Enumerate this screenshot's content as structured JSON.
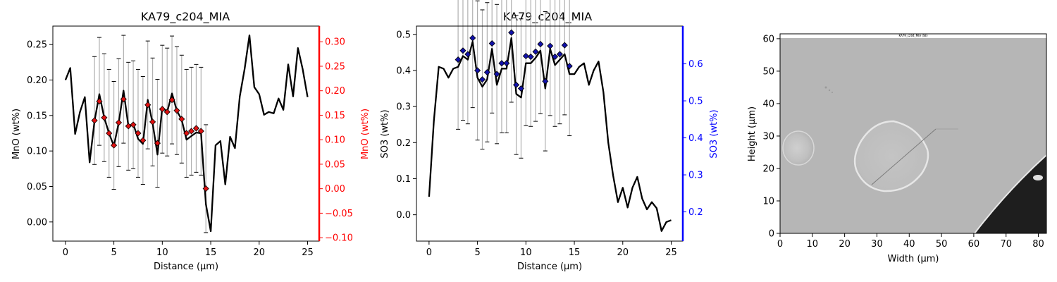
{
  "chart_data": [
    {
      "type": "line",
      "title": "KA79_c204_MIA",
      "xlabel": "Distance (µm)",
      "ylabel": "MnO (wt%)",
      "ylabel_right": "MnO (wt%)",
      "xlim": [
        -1.3,
        26.2
      ],
      "ylim": [
        -0.027,
        0.276
      ],
      "ylim_right": [
        -0.107,
        0.332
      ],
      "xticks": [
        0,
        5,
        10,
        15,
        20,
        25
      ],
      "yticks": [
        0.0,
        0.05,
        0.1,
        0.15,
        0.2,
        0.25
      ],
      "yticks_right": [
        -0.1,
        -0.05,
        0.0,
        0.05,
        0.1,
        0.15,
        0.2,
        0.25,
        0.3
      ],
      "ytick_labels": [
        "0.00",
        "0.05",
        "0.10",
        "0.15",
        "0.20",
        "0.25"
      ],
      "ytick_labels_right": [
        "−0.10",
        "−0.05",
        "0.00",
        "0.05",
        "0.10",
        "0.15",
        "0.20",
        "0.25",
        "0.30"
      ],
      "right_axis_color": "#ff0000",
      "marker_color": "#dd1111",
      "profile": {
        "x": [
          0,
          0.5,
          1,
          1.5,
          2,
          2.5,
          3,
          3.5,
          4,
          4.5,
          5,
          5.5,
          6,
          6.5,
          7,
          7.5,
          8,
          8.5,
          9,
          9.5,
          10,
          10.5,
          11,
          11.5,
          12,
          12.5,
          13,
          13.5,
          14,
          14.5,
          15,
          15.5,
          16,
          16.5,
          17,
          17.5,
          18,
          18.5,
          19,
          19.5,
          20,
          20.5,
          21,
          21.5,
          22,
          22.5,
          23,
          23.5,
          24,
          24.5,
          25
        ],
        "y": [
          0.2,
          0.217,
          0.124,
          0.155,
          0.176,
          0.084,
          0.142,
          0.18,
          0.147,
          0.125,
          0.107,
          0.14,
          0.185,
          0.135,
          0.138,
          0.117,
          0.11,
          0.172,
          0.139,
          0.095,
          0.162,
          0.155,
          0.181,
          0.157,
          0.144,
          0.116,
          0.121,
          0.126,
          0.125,
          0.025,
          -0.013,
          0.108,
          0.114,
          0.053,
          0.12,
          0.104,
          0.177,
          0.216,
          0.263,
          0.19,
          0.18,
          0.151,
          0.155,
          0.153,
          0.174,
          0.158,
          0.222,
          0.177,
          0.245,
          0.215,
          0.176
        ]
      },
      "spot_analyses": {
        "x": [
          3.0,
          3.5,
          4.0,
          4.5,
          5.0,
          5.5,
          6.0,
          6.5,
          7.0,
          7.5,
          8.0,
          8.5,
          9.0,
          9.5,
          10.0,
          10.5,
          11.0,
          11.5,
          12.0,
          12.5,
          13.0,
          13.5,
          14.0,
          14.5
        ],
        "y": [
          0.143,
          0.17,
          0.147,
          0.125,
          0.108,
          0.14,
          0.173,
          0.135,
          0.137,
          0.125,
          0.115,
          0.165,
          0.141,
          0.111,
          0.159,
          0.155,
          0.172,
          0.157,
          0.145,
          0.125,
          0.128,
          0.132,
          0.128,
          0.047
        ],
        "err_low": [
          0.081,
          0.108,
          0.085,
          0.063,
          0.046,
          0.078,
          0.111,
          0.073,
          0.075,
          0.063,
          0.053,
          0.103,
          0.079,
          0.049,
          0.097,
          0.093,
          0.11,
          0.095,
          0.083,
          0.063,
          0.066,
          0.07,
          0.066,
          -0.015
        ],
        "err_high": [
          0.233,
          0.26,
          0.237,
          0.215,
          0.198,
          0.23,
          0.263,
          0.225,
          0.227,
          0.215,
          0.205,
          0.255,
          0.231,
          0.201,
          0.249,
          0.245,
          0.262,
          0.247,
          0.235,
          0.215,
          0.218,
          0.222,
          0.218,
          0.137
        ]
      }
    },
    {
      "type": "line",
      "title": "KA79_c204_MIA",
      "xlabel": "Distance (µm)",
      "ylabel": "SO3 (wt%)",
      "ylabel_right": "SO3 (wt%)",
      "xlim": [
        -1.3,
        26.2
      ],
      "ylim": [
        -0.073,
        0.523
      ],
      "ylim_right": [
        0.121,
        0.702
      ],
      "xticks": [
        0,
        5,
        10,
        15,
        20,
        25
      ],
      "yticks": [
        0.0,
        0.1,
        0.2,
        0.3,
        0.4,
        0.5
      ],
      "yticks_right": [
        0.2,
        0.3,
        0.4,
        0.5,
        0.6
      ],
      "ytick_labels": [
        "0.0",
        "0.1",
        "0.2",
        "0.3",
        "0.4",
        "0.5"
      ],
      "ytick_labels_right": [
        "0.2",
        "0.3",
        "0.4",
        "0.5",
        "0.6"
      ],
      "right_axis_color": "#0000ff",
      "marker_color": "#1111aa",
      "profile": {
        "x": [
          0,
          0.5,
          1,
          1.5,
          2,
          2.5,
          3,
          3.5,
          4,
          4.5,
          5,
          5.5,
          6,
          6.5,
          7,
          7.5,
          8,
          8.5,
          9,
          9.5,
          10,
          10.5,
          11,
          11.5,
          12,
          12.5,
          13,
          13.5,
          14,
          14.5,
          15,
          15.5,
          16,
          16.5,
          17,
          17.5,
          18,
          18.5,
          19,
          19.5,
          20,
          20.5,
          21,
          21.5,
          22,
          22.5,
          23,
          23.5,
          24,
          24.5,
          25
        ],
        "y": [
          0.05,
          0.26,
          0.41,
          0.405,
          0.38,
          0.405,
          0.41,
          0.44,
          0.43,
          0.48,
          0.38,
          0.355,
          0.375,
          0.46,
          0.36,
          0.405,
          0.405,
          0.49,
          0.335,
          0.325,
          0.42,
          0.42,
          0.435,
          0.455,
          0.35,
          0.46,
          0.415,
          0.43,
          0.445,
          0.39,
          0.39,
          0.41,
          0.42,
          0.36,
          0.4,
          0.425,
          0.34,
          0.2,
          0.11,
          0.035,
          0.075,
          0.02,
          0.075,
          0.105,
          0.045,
          0.015,
          0.035,
          0.018,
          -0.045,
          -0.02,
          -0.015
        ]
      },
      "spot_analyses": {
        "x": [
          3.0,
          3.5,
          4.0,
          4.5,
          5.0,
          5.5,
          6.0,
          6.5,
          7.0,
          7.5,
          8.0,
          8.5,
          9.0,
          9.5,
          10.0,
          10.5,
          11.0,
          11.5,
          12.0,
          12.5,
          13.0,
          13.5,
          14.0,
          14.5
        ],
        "y": [
          0.43,
          0.455,
          0.445,
          0.49,
          0.4,
          0.375,
          0.395,
          0.475,
          0.39,
          0.42,
          0.42,
          0.505,
          0.36,
          0.35,
          0.44,
          0.438,
          0.452,
          0.473,
          0.37,
          0.468,
          0.438,
          0.445,
          0.47,
          0.412
        ],
        "err_low": [
          0.237,
          0.262,
          0.252,
          0.297,
          0.207,
          0.182,
          0.202,
          0.282,
          0.197,
          0.227,
          0.227,
          0.312,
          0.167,
          0.157,
          0.247,
          0.245,
          0.259,
          0.28,
          0.177,
          0.275,
          0.245,
          0.252,
          0.277,
          0.219
        ],
        "err_high": [
          0.623,
          0.648,
          0.638,
          0.683,
          0.593,
          0.568,
          0.588,
          0.668,
          0.583,
          0.613,
          0.613,
          0.698,
          0.553,
          0.543,
          0.633,
          0.631,
          0.645,
          0.666,
          0.563,
          0.661,
          0.631,
          0.638,
          0.663,
          0.605
        ]
      }
    },
    {
      "type": "image",
      "title": "",
      "image_caption": "KA79_c204_MIA (SE)",
      "xlabel": "Width (µm)",
      "ylabel": "Height (µm)",
      "xlim": [
        0,
        82.5
      ],
      "ylim": [
        0,
        61.5
      ],
      "xticks": [
        0,
        10,
        20,
        30,
        40,
        50,
        60,
        70,
        80
      ],
      "yticks": [
        0,
        10,
        20,
        30,
        40,
        50,
        60
      ]
    }
  ]
}
